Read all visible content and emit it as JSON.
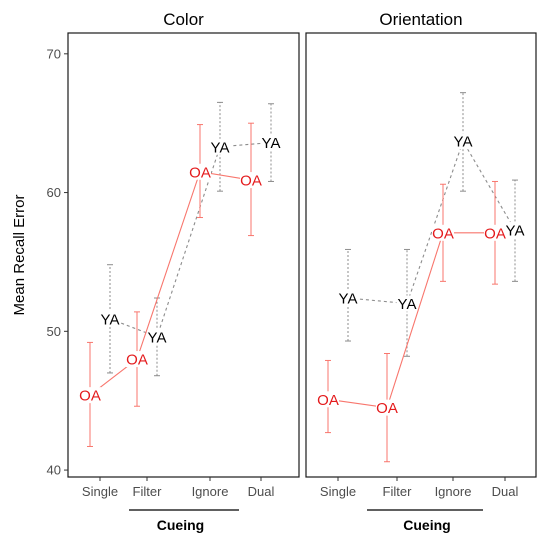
{
  "chart_data": {
    "type": "line",
    "ylabel": "Mean Recall Error",
    "xlabel": "Cueing",
    "categories": [
      "Single",
      "Filter",
      "Ignore",
      "Dual"
    ],
    "ylim": [
      39.5,
      71.5
    ],
    "yticks": [
      40,
      50,
      60,
      70
    ],
    "grid": false,
    "legend": "none",
    "series_styles": {
      "OA": {
        "color": "#f8766d",
        "label_color": "#e41a1c",
        "dash": "none"
      },
      "YA": {
        "color": "#8c8c8c",
        "label_color": "#000000",
        "dash": "3,3"
      }
    },
    "panels": [
      {
        "title": "Color",
        "series": [
          {
            "name": "OA",
            "values": [
              45.4,
              48.0,
              61.5,
              60.9
            ],
            "ci_low": [
              41.7,
              44.6,
              58.2,
              56.9
            ],
            "ci_high": [
              49.2,
              51.4,
              64.9,
              65.0
            ]
          },
          {
            "name": "YA",
            "values": [
              50.9,
              49.6,
              63.3,
              63.6
            ],
            "ci_low": [
              47.0,
              46.8,
              60.1,
              60.8
            ],
            "ci_high": [
              54.8,
              52.4,
              66.5,
              66.4
            ]
          }
        ]
      },
      {
        "title": "Orientation",
        "series": [
          {
            "name": "OA",
            "values": [
              45.1,
              44.5,
              57.1,
              57.1
            ],
            "ci_low": [
              42.7,
              40.6,
              53.6,
              53.4
            ],
            "ci_high": [
              47.9,
              48.4,
              60.6,
              60.8
            ]
          },
          {
            "name": "YA",
            "values": [
              52.4,
              52.0,
              63.7,
              57.3
            ],
            "ci_low": [
              49.3,
              48.2,
              60.1,
              53.6
            ],
            "ci_high": [
              55.9,
              55.9,
              67.2,
              60.9
            ]
          }
        ]
      }
    ]
  }
}
